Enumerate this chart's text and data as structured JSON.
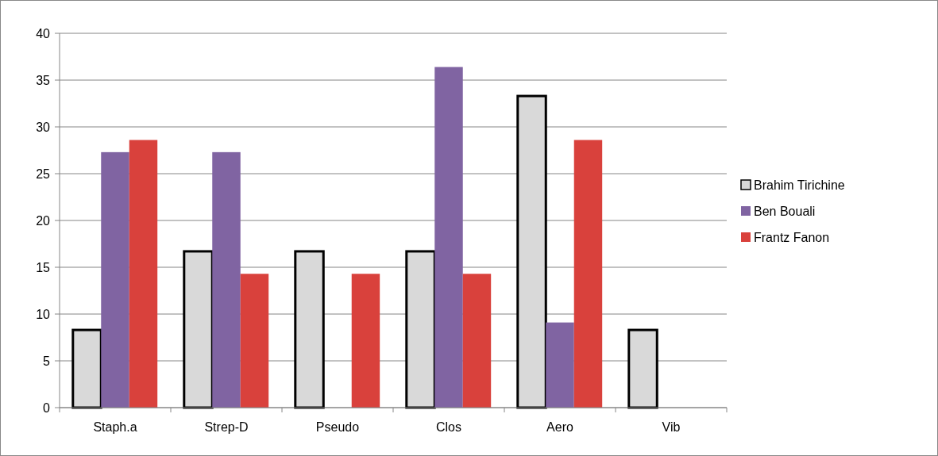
{
  "chart_data": {
    "type": "bar",
    "categories": [
      "Staph.a",
      "Strep-D",
      "Pseudo",
      "Clos",
      "Aero",
      "Vib"
    ],
    "series": [
      {
        "name": "Brahim Tirichine",
        "color": "#d9d9d9",
        "values": [
          8.3,
          16.7,
          16.7,
          16.7,
          33.3,
          8.3
        ]
      },
      {
        "name": "Ben Bouali",
        "color": "#8064a2",
        "values": [
          27.3,
          27.3,
          0,
          36.4,
          9.1,
          0
        ]
      },
      {
        "name": "Frantz Fanon",
        "color": "#d9413c",
        "values": [
          28.6,
          14.3,
          14.3,
          14.3,
          28.6,
          0
        ]
      }
    ],
    "ylim": [
      0,
      40
    ],
    "yticks": [
      0,
      5,
      10,
      15,
      20,
      25,
      30,
      35,
      40
    ],
    "grid": "y",
    "legend": "right"
  }
}
